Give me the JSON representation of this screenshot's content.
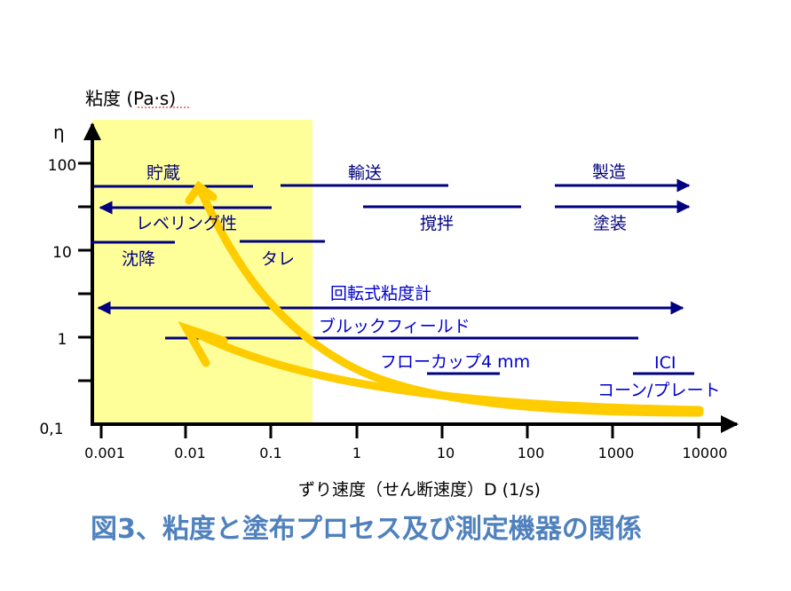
{
  "axes": {
    "y_title": "粘度 (Pa·s)",
    "y_symbol": "η",
    "y_ticks": [
      "100",
      "10",
      "1",
      "0,1"
    ],
    "x_ticks": [
      "0.001",
      "0.01",
      "0.1",
      "1",
      "10",
      "100",
      "1000",
      "10000"
    ],
    "x_title": "ずり速度（せん断速度）D (1/s)"
  },
  "processes": {
    "storage": "貯蔵",
    "transport": "輸送",
    "manufacturing": "製造",
    "leveling": "レベリング性",
    "stirring": "撹拌",
    "painting": "塗装",
    "sedimentation": "沈降",
    "sagging": "タレ"
  },
  "instruments": {
    "rotational": "回転式粘度計",
    "brookfield": "ブルックフィールド",
    "flow_cup": "フローカップ4 mm",
    "ici_line1": "ICI",
    "ici_line2": "コーン/プレート"
  },
  "caption": "図3、粘度と塗布プロセス及び測定機器の関係",
  "colors": {
    "storage_region": "#ffff99",
    "range_line": "#000080",
    "curve": "#ffcc00",
    "caption": "#4f81bd",
    "axis": "#000000"
  }
}
